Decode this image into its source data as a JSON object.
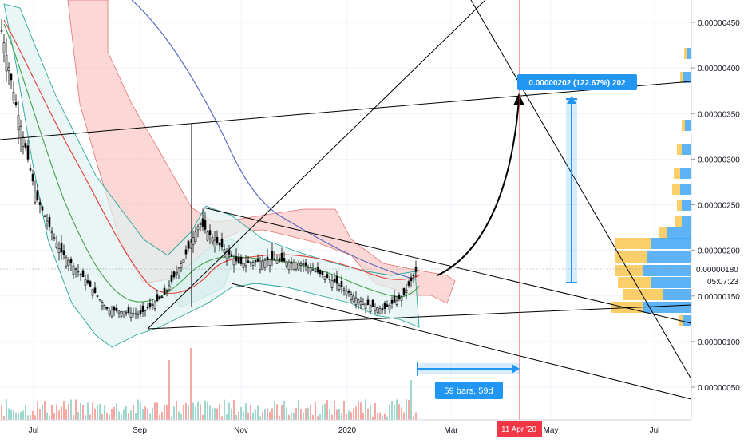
{
  "chart_data": {
    "type": "candlestick",
    "grid": true,
    "price_axis": {
      "side": "right",
      "ticks": [
        "0.00000450",
        "0.00000400",
        "0.00000350",
        "0.00000300",
        "0.00000250",
        "0.00000200",
        "0.00000150",
        "0.00000100",
        "0.00000050"
      ],
      "tick_values": [
        4.5e-06,
        4e-06,
        3.5e-06,
        3e-06,
        2.5e-06,
        2e-06,
        1.5e-06,
        1e-06,
        5e-07
      ],
      "current_price_label": "0.00000180",
      "current_price": 1.8e-06,
      "countdown_label": "05:07:23"
    },
    "time_axis": {
      "ticks": [
        "Jul",
        "Sep",
        "Nov",
        "2020",
        "Mar",
        "May",
        "Jul"
      ],
      "highlighted_label": "11 Apr '20"
    },
    "price_series_approx": {
      "dates": [
        "2019-06-10",
        "2019-06-25",
        "2019-07-10",
        "2019-07-25",
        "2019-08-10",
        "2019-08-25",
        "2019-09-05",
        "2019-09-20",
        "2019-10-05",
        "2019-10-15",
        "2019-10-25",
        "2019-11-10",
        "2019-11-25",
        "2019-12-10",
        "2019-12-25",
        "2020-01-05",
        "2020-01-15",
        "2020-01-25",
        "2020-02-05"
      ],
      "close": [
        4.5e-06,
        3.6e-06,
        2.6e-06,
        2e-06,
        1.7e-06,
        1.35e-06,
        1.3e-06,
        1.5e-06,
        1.9e-06,
        2.3e-06,
        2.1e-06,
        1.85e-06,
        1.9e-06,
        1.85e-06,
        1.65e-06,
        1.42e-06,
        1.35e-06,
        1.5e-06,
        1.8e-06
      ]
    },
    "annotations": {
      "target_label": "0.00000202 (122.67%) 202",
      "date_range_label": "59 bars, 59d"
    },
    "volume_profile_side": "right"
  }
}
